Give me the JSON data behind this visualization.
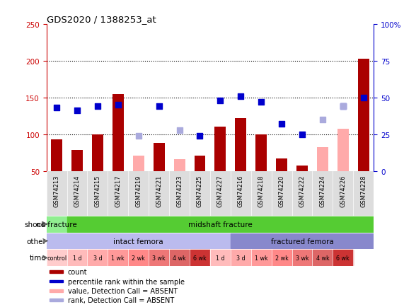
{
  "title": "GDS2020 / 1388253_at",
  "samples": [
    "GSM74213",
    "GSM74214",
    "GSM74215",
    "GSM74217",
    "GSM74219",
    "GSM74221",
    "GSM74223",
    "GSM74225",
    "GSM74227",
    "GSM74216",
    "GSM74218",
    "GSM74220",
    "GSM74222",
    "GSM74224",
    "GSM74226",
    "GSM74228"
  ],
  "red_bars": [
    93,
    79,
    100,
    155,
    null,
    88,
    null,
    71,
    110,
    122,
    100,
    67,
    57,
    null,
    null,
    203
  ],
  "pink_bars": [
    null,
    null,
    null,
    null,
    71,
    null,
    66,
    null,
    null,
    null,
    null,
    null,
    null,
    82,
    107,
    null
  ],
  "blue_squares_pct": [
    43,
    41,
    44,
    45,
    null,
    44,
    null,
    24,
    48,
    51,
    47,
    32,
    25,
    null,
    44,
    50
  ],
  "lavender_squares_pct": [
    null,
    null,
    null,
    null,
    24,
    null,
    28,
    null,
    null,
    null,
    null,
    null,
    null,
    35,
    44,
    null
  ],
  "ylim_left": [
    50,
    250
  ],
  "yticks_left": [
    50,
    100,
    150,
    200,
    250
  ],
  "yticks_right_labels": [
    "0",
    "25",
    "50",
    "75",
    "100%"
  ],
  "yticks_right_vals": [
    0,
    25,
    50,
    75,
    100
  ],
  "hlines": [
    100,
    150,
    200
  ],
  "bar_color_red": "#AA0000",
  "bar_color_pink": "#FFAAAA",
  "square_color_blue": "#0000CC",
  "square_color_lavender": "#AAAADD",
  "bar_width": 0.55,
  "square_size": 30,
  "left_label_color": "#CC0000",
  "right_label_color": "#0000CC",
  "shock_no_fracture_color": "#90EE90",
  "shock_midshaft_color": "#55CC33",
  "other_intact_color": "#BBBBEE",
  "other_fractured_color": "#8888CC",
  "time_labels": [
    "control",
    "1 d",
    "3 d",
    "1 wk",
    "2 wk",
    "3 wk",
    "4 wk",
    "6 wk",
    "1 d",
    "3 d",
    "1 wk",
    "2 wk",
    "3 wk",
    "4 wk",
    "6 wk"
  ],
  "time_colors": [
    "#FFCCCC",
    "#FFBBBB",
    "#FFAAAA",
    "#FF9999",
    "#FF8888",
    "#EE7777",
    "#DD6666",
    "#CC3333",
    "#FFBBBB",
    "#FFAAAA",
    "#FF9999",
    "#FF8888",
    "#EE7777",
    "#DD6666",
    "#CC3333"
  ],
  "legend_items": [
    {
      "color": "#AA0000",
      "label": "count"
    },
    {
      "color": "#0000CC",
      "label": "percentile rank within the sample"
    },
    {
      "color": "#FFAAAA",
      "label": "value, Detection Call = ABSENT"
    },
    {
      "color": "#AAAADD",
      "label": "rank, Detection Call = ABSENT"
    }
  ]
}
